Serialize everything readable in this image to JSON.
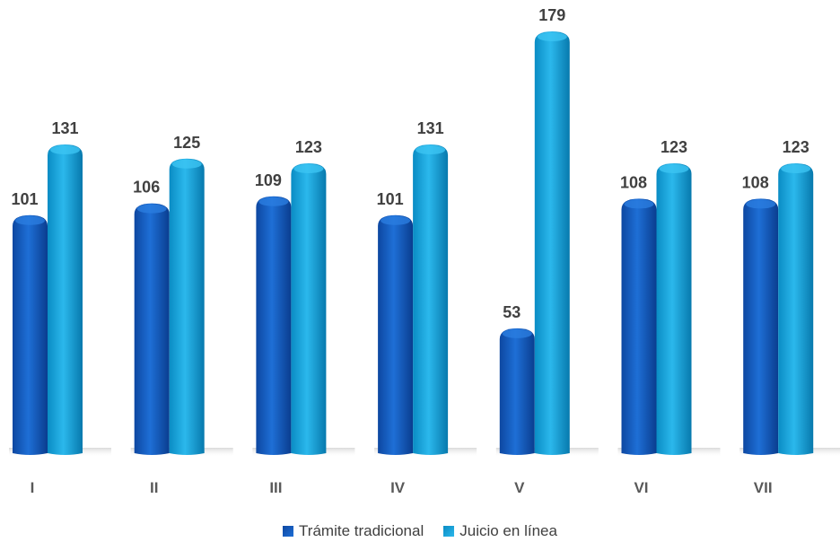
{
  "chart_data": {
    "type": "bar",
    "categories": [
      "I",
      "II",
      "III",
      "IV",
      "V",
      "VI",
      "VII"
    ],
    "series": [
      {
        "name": "Trámite tradicional",
        "values": [
          101,
          106,
          109,
          101,
          53,
          108,
          108
        ],
        "color": "#1565c0",
        "labels": [
          "101",
          "106",
          "109",
          "101",
          "53",
          "108",
          "108"
        ]
      },
      {
        "name": "Juicio en línea",
        "values": [
          131,
          125,
          123,
          131,
          179,
          123,
          123
        ],
        "color": "#1aa3d9",
        "labels": [
          "131",
          "125",
          "123",
          "131",
          "179",
          "123",
          "123"
        ]
      }
    ],
    "title": "",
    "xlabel": "",
    "ylabel": "",
    "ylim": [
      0,
      179
    ],
    "grid": false,
    "legend_position": "bottom"
  }
}
